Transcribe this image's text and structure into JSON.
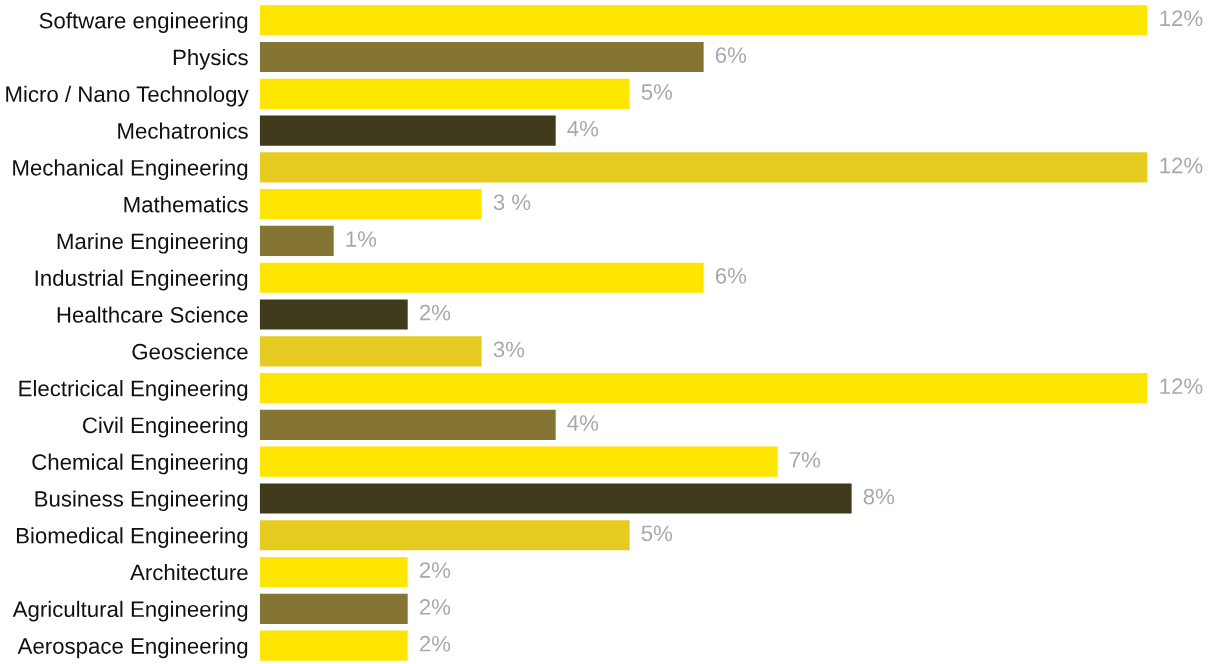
{
  "chart_data": {
    "type": "bar",
    "orientation": "horizontal",
    "categories": [
      "Software engineering",
      "Physics",
      "Micro / Nano Technology",
      "Mechatronics",
      "Mechanical Engineering",
      "Mathematics",
      "Marine Engineering",
      "Industrial Engineering",
      "Healthcare Science",
      "Geoscience",
      "Electricical Engineering",
      "Civil Engineering",
      "Chemical Engineering",
      "Business Engineering",
      "Biomedical Engineering",
      "Architecture",
      "Agricultural Engineering",
      "Aerospace Engineering"
    ],
    "values": [
      12,
      6,
      5,
      4,
      12,
      3,
      1,
      6,
      2,
      3,
      12,
      4,
      7,
      8,
      5,
      2,
      2,
      2
    ],
    "value_labels": [
      "12%",
      "6%",
      "5%",
      "4%",
      "12%",
      "3 %",
      "1%",
      "6%",
      "2%",
      "3%",
      "12%",
      "4%",
      "7%",
      "8%",
      "5%",
      "2%",
      "2%",
      "2%"
    ],
    "colors": [
      "#ffe600",
      "#857535",
      "#ffe600",
      "#3f3a1c",
      "#e6cc20",
      "#ffe600",
      "#857535",
      "#ffe600",
      "#3f3a1c",
      "#e6cc20",
      "#ffe600",
      "#857535",
      "#ffe600",
      "#3f3a1c",
      "#e6cc20",
      "#ffe600",
      "#857535",
      "#ffe600"
    ],
    "legend": false
  }
}
